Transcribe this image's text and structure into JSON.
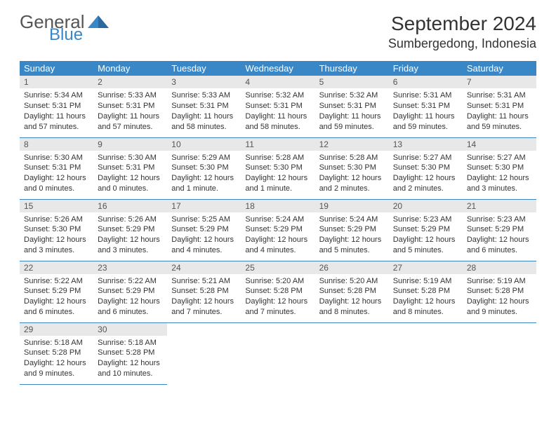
{
  "logo": {
    "general": "General",
    "blue": "Blue"
  },
  "title": "September 2024",
  "location": "Sumbergedong, Indonesia",
  "day_headers": [
    "Sunday",
    "Monday",
    "Tuesday",
    "Wednesday",
    "Thursday",
    "Friday",
    "Saturday"
  ],
  "colors": {
    "header_bg": "#3a87c8",
    "daynum_bg": "#e8e8e8",
    "border": "#3a87c8",
    "logo_blue": "#3a87c8",
    "logo_gray": "#555555"
  },
  "weeks": [
    [
      {
        "n": "1",
        "sr": "5:34 AM",
        "ss": "5:31 PM",
        "dl": "11 hours and 57 minutes."
      },
      {
        "n": "2",
        "sr": "5:33 AM",
        "ss": "5:31 PM",
        "dl": "11 hours and 57 minutes."
      },
      {
        "n": "3",
        "sr": "5:33 AM",
        "ss": "5:31 PM",
        "dl": "11 hours and 58 minutes."
      },
      {
        "n": "4",
        "sr": "5:32 AM",
        "ss": "5:31 PM",
        "dl": "11 hours and 58 minutes."
      },
      {
        "n": "5",
        "sr": "5:32 AM",
        "ss": "5:31 PM",
        "dl": "11 hours and 59 minutes."
      },
      {
        "n": "6",
        "sr": "5:31 AM",
        "ss": "5:31 PM",
        "dl": "11 hours and 59 minutes."
      },
      {
        "n": "7",
        "sr": "5:31 AM",
        "ss": "5:31 PM",
        "dl": "11 hours and 59 minutes."
      }
    ],
    [
      {
        "n": "8",
        "sr": "5:30 AM",
        "ss": "5:31 PM",
        "dl": "12 hours and 0 minutes."
      },
      {
        "n": "9",
        "sr": "5:30 AM",
        "ss": "5:31 PM",
        "dl": "12 hours and 0 minutes."
      },
      {
        "n": "10",
        "sr": "5:29 AM",
        "ss": "5:30 PM",
        "dl": "12 hours and 1 minute."
      },
      {
        "n": "11",
        "sr": "5:28 AM",
        "ss": "5:30 PM",
        "dl": "12 hours and 1 minute."
      },
      {
        "n": "12",
        "sr": "5:28 AM",
        "ss": "5:30 PM",
        "dl": "12 hours and 2 minutes."
      },
      {
        "n": "13",
        "sr": "5:27 AM",
        "ss": "5:30 PM",
        "dl": "12 hours and 2 minutes."
      },
      {
        "n": "14",
        "sr": "5:27 AM",
        "ss": "5:30 PM",
        "dl": "12 hours and 3 minutes."
      }
    ],
    [
      {
        "n": "15",
        "sr": "5:26 AM",
        "ss": "5:30 PM",
        "dl": "12 hours and 3 minutes."
      },
      {
        "n": "16",
        "sr": "5:26 AM",
        "ss": "5:29 PM",
        "dl": "12 hours and 3 minutes."
      },
      {
        "n": "17",
        "sr": "5:25 AM",
        "ss": "5:29 PM",
        "dl": "12 hours and 4 minutes."
      },
      {
        "n": "18",
        "sr": "5:24 AM",
        "ss": "5:29 PM",
        "dl": "12 hours and 4 minutes."
      },
      {
        "n": "19",
        "sr": "5:24 AM",
        "ss": "5:29 PM",
        "dl": "12 hours and 5 minutes."
      },
      {
        "n": "20",
        "sr": "5:23 AM",
        "ss": "5:29 PM",
        "dl": "12 hours and 5 minutes."
      },
      {
        "n": "21",
        "sr": "5:23 AM",
        "ss": "5:29 PM",
        "dl": "12 hours and 6 minutes."
      }
    ],
    [
      {
        "n": "22",
        "sr": "5:22 AM",
        "ss": "5:29 PM",
        "dl": "12 hours and 6 minutes."
      },
      {
        "n": "23",
        "sr": "5:22 AM",
        "ss": "5:29 PM",
        "dl": "12 hours and 6 minutes."
      },
      {
        "n": "24",
        "sr": "5:21 AM",
        "ss": "5:28 PM",
        "dl": "12 hours and 7 minutes."
      },
      {
        "n": "25",
        "sr": "5:20 AM",
        "ss": "5:28 PM",
        "dl": "12 hours and 7 minutes."
      },
      {
        "n": "26",
        "sr": "5:20 AM",
        "ss": "5:28 PM",
        "dl": "12 hours and 8 minutes."
      },
      {
        "n": "27",
        "sr": "5:19 AM",
        "ss": "5:28 PM",
        "dl": "12 hours and 8 minutes."
      },
      {
        "n": "28",
        "sr": "5:19 AM",
        "ss": "5:28 PM",
        "dl": "12 hours and 9 minutes."
      }
    ],
    [
      {
        "n": "29",
        "sr": "5:18 AM",
        "ss": "5:28 PM",
        "dl": "12 hours and 9 minutes."
      },
      {
        "n": "30",
        "sr": "5:18 AM",
        "ss": "5:28 PM",
        "dl": "12 hours and 10 minutes."
      },
      null,
      null,
      null,
      null,
      null
    ]
  ],
  "labels": {
    "sunrise": "Sunrise:",
    "sunset": "Sunset:",
    "daylight": "Daylight:"
  }
}
